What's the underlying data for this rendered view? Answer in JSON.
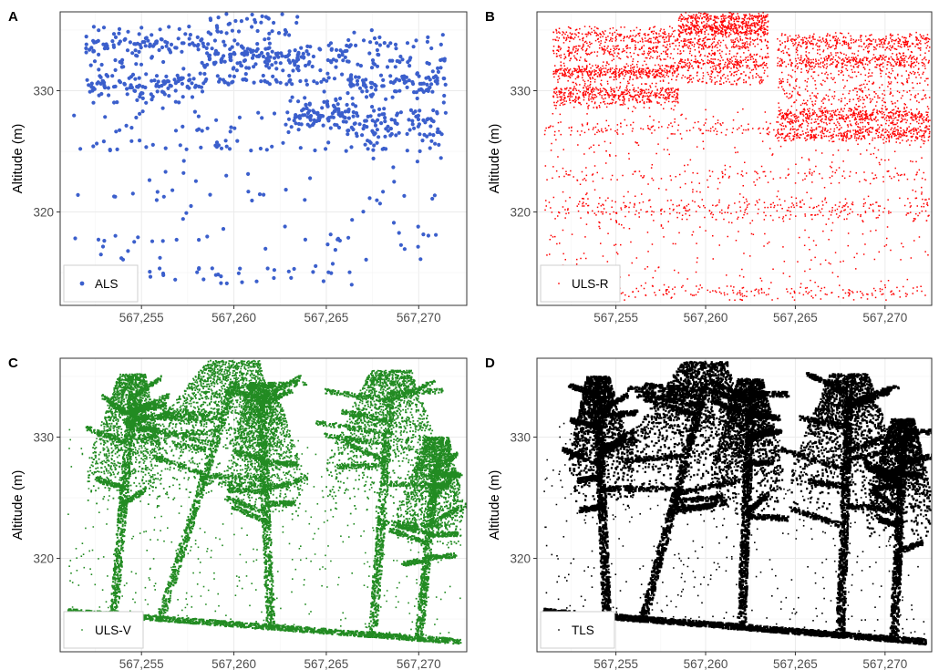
{
  "chart_data": [
    {
      "panel": "A",
      "type": "scatter",
      "legend_label": "ALS",
      "color": "#3b5fcc",
      "ylabel": "Altitude (m)",
      "xlim": [
        567250.6,
        567272.6
      ],
      "ylim": [
        312.3,
        336.5
      ],
      "x_ticks": [
        567255,
        567260,
        567265,
        567270
      ],
      "x_tick_labels": [
        "567,255",
        "567,260",
        "567,265",
        "567,270"
      ],
      "y_ticks": [
        320,
        330
      ],
      "y_tick_labels": [
        "320",
        "330"
      ],
      "grid": true,
      "legend_position": "bottom-left",
      "density": "sparse",
      "clusters": [
        {
          "x_range": [
            567252.0,
            567258.5
          ],
          "y_range": [
            329.0,
            335.3
          ],
          "points": 240
        },
        {
          "x_range": [
            567258.5,
            567263.5
          ],
          "y_range": [
            330.5,
            336.1
          ],
          "points": 200
        },
        {
          "x_range": [
            567263.0,
            567266.5
          ],
          "y_range": [
            327.0,
            334.0
          ],
          "points": 140
        },
        {
          "x_range": [
            567266.0,
            567271.5
          ],
          "y_range": [
            326.5,
            335.0
          ],
          "points": 230
        },
        {
          "x_range": [
            567251.0,
            567271.5
          ],
          "y_range": [
            316.0,
            329.0
          ],
          "points": 200
        },
        {
          "x_range": [
            567251.5,
            567266.5
          ],
          "y_range": [
            314.0,
            315.4
          ],
          "points": 40
        }
      ]
    },
    {
      "panel": "B",
      "type": "scatter",
      "legend_label": "ULS-R",
      "color": "#ff0000",
      "ylabel": "Altitude (m)",
      "xlim": [
        567250.6,
        567272.6
      ],
      "ylim": [
        312.3,
        336.5
      ],
      "x_ticks": [
        567255,
        567260,
        567265,
        567270
      ],
      "x_tick_labels": [
        "567,255",
        "567,260",
        "567,265",
        "567,270"
      ],
      "y_ticks": [
        320,
        330
      ],
      "y_tick_labels": [
        "320",
        "330"
      ],
      "grid": true,
      "legend_position": "bottom-left",
      "density": "medium",
      "clusters": [
        {
          "x_range": [
            567251.5,
            567258.5
          ],
          "y_range": [
            328.5,
            335.3
          ],
          "points": 1400
        },
        {
          "x_range": [
            567258.5,
            567263.5
          ],
          "y_range": [
            330.5,
            336.3
          ],
          "points": 1200
        },
        {
          "x_range": [
            567264.0,
            567272.5
          ],
          "y_range": [
            326.0,
            334.8
          ],
          "points": 1900
        },
        {
          "x_range": [
            567251.0,
            567272.5
          ],
          "y_range": [
            313.0,
            328.5
          ],
          "points": 1300
        }
      ]
    },
    {
      "panel": "C",
      "type": "scatter",
      "legend_label": "ULS-V",
      "color": "#228b22",
      "ylabel": "Altitude (m)",
      "xlim": [
        567250.6,
        567272.6
      ],
      "ylim": [
        312.3,
        336.5
      ],
      "x_ticks": [
        567255,
        567260,
        567265,
        567270
      ],
      "x_tick_labels": [
        "567,255",
        "567,260",
        "567,265",
        "567,270"
      ],
      "y_ticks": [
        320,
        330
      ],
      "y_tick_labels": [
        "320",
        "330"
      ],
      "grid": true,
      "legend_position": "bottom-left",
      "density": "dense",
      "ground": {
        "x": [
          567251.0,
          567272.3
        ],
        "y": [
          315.4,
          312.9
        ]
      },
      "trees": [
        {
          "x_base": 567253.5,
          "x_top": 567254.5,
          "y_top": 335.2,
          "crown_w": 2.0
        },
        {
          "x_base": 567256.0,
          "x_top": 567260.0,
          "y_top": 336.3,
          "crown_w": 4.0
        },
        {
          "x_base": 567262.0,
          "x_top": 567261.5,
          "y_top": 334.5,
          "crown_w": 2.0
        },
        {
          "x_base": 567267.5,
          "x_top": 567268.5,
          "y_top": 335.5,
          "crown_w": 3.2
        },
        {
          "x_base": 567270.0,
          "x_top": 567271.0,
          "y_top": 330.0,
          "crown_w": 1.8
        }
      ]
    },
    {
      "panel": "D",
      "type": "scatter",
      "legend_label": "TLS",
      "color": "#000000",
      "ylabel": "Altitude (m)",
      "xlim": [
        567250.6,
        567272.6
      ],
      "ylim": [
        312.3,
        336.5
      ],
      "x_ticks": [
        567255,
        567260,
        567265,
        567270
      ],
      "x_tick_labels": [
        "567,255",
        "567,260",
        "567,265",
        "567,270"
      ],
      "y_ticks": [
        320,
        330
      ],
      "y_tick_labels": [
        "320",
        "330"
      ],
      "grid": true,
      "legend_position": "bottom-left",
      "density": "very dense",
      "ground": {
        "x": [
          567251.0,
          567272.3
        ],
        "y": [
          315.4,
          312.9
        ]
      },
      "trees": [
        {
          "x_base": 567254.5,
          "x_top": 567254.0,
          "y_top": 335.0,
          "crown_w": 1.8
        },
        {
          "x_base": 567256.5,
          "x_top": 567260.0,
          "y_top": 336.2,
          "crown_w": 3.6
        },
        {
          "x_base": 567262.0,
          "x_top": 567262.5,
          "y_top": 334.8,
          "crown_w": 2.0
        },
        {
          "x_base": 567267.5,
          "x_top": 567268.0,
          "y_top": 335.2,
          "crown_w": 3.0
        },
        {
          "x_base": 567270.5,
          "x_top": 567271.0,
          "y_top": 331.5,
          "crown_w": 1.8
        }
      ]
    }
  ]
}
